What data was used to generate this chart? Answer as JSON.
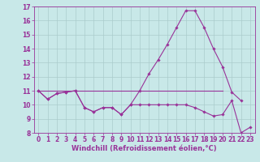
{
  "x": [
    0,
    1,
    2,
    3,
    4,
    5,
    6,
    7,
    8,
    9,
    10,
    11,
    12,
    13,
    14,
    15,
    16,
    17,
    18,
    19,
    20,
    21,
    22,
    23
  ],
  "line1": [
    11.0,
    10.4,
    10.8,
    10.9,
    11.0,
    9.8,
    9.5,
    9.8,
    9.8,
    9.3,
    10.0,
    10.0,
    10.0,
    10.0,
    10.0,
    10.0,
    10.0,
    9.8,
    9.5,
    9.2,
    9.3,
    10.3,
    8.0,
    8.4
  ],
  "line2": [
    11.0,
    10.4,
    10.8,
    10.9,
    11.0,
    9.8,
    9.5,
    9.8,
    9.8,
    9.3,
    10.0,
    11.0,
    12.2,
    13.2,
    14.3,
    15.5,
    16.7,
    16.7,
    15.5,
    14.0,
    12.7,
    10.9,
    10.3,
    null
  ],
  "flat_line_y": 11.0,
  "flat_line_x_start": 0,
  "flat_line_x_end": 20,
  "bg_color": "#c8e8e8",
  "grid_color": "#aacccc",
  "line_color": "#993399",
  "marker": "D",
  "marker_size": 1.8,
  "linewidth": 0.8,
  "xlabel": "Windchill (Refroidissement éolien,°C)",
  "xlabel_fontsize": 6,
  "tick_fontsize": 5.5,
  "ylim": [
    8,
    17
  ],
  "xlim": [
    -0.5,
    23.5
  ],
  "yticks": [
    8,
    9,
    10,
    11,
    12,
    13,
    14,
    15,
    16,
    17
  ],
  "xticks": [
    0,
    1,
    2,
    3,
    4,
    5,
    6,
    7,
    8,
    9,
    10,
    11,
    12,
    13,
    14,
    15,
    16,
    17,
    18,
    19,
    20,
    21,
    22,
    23
  ]
}
